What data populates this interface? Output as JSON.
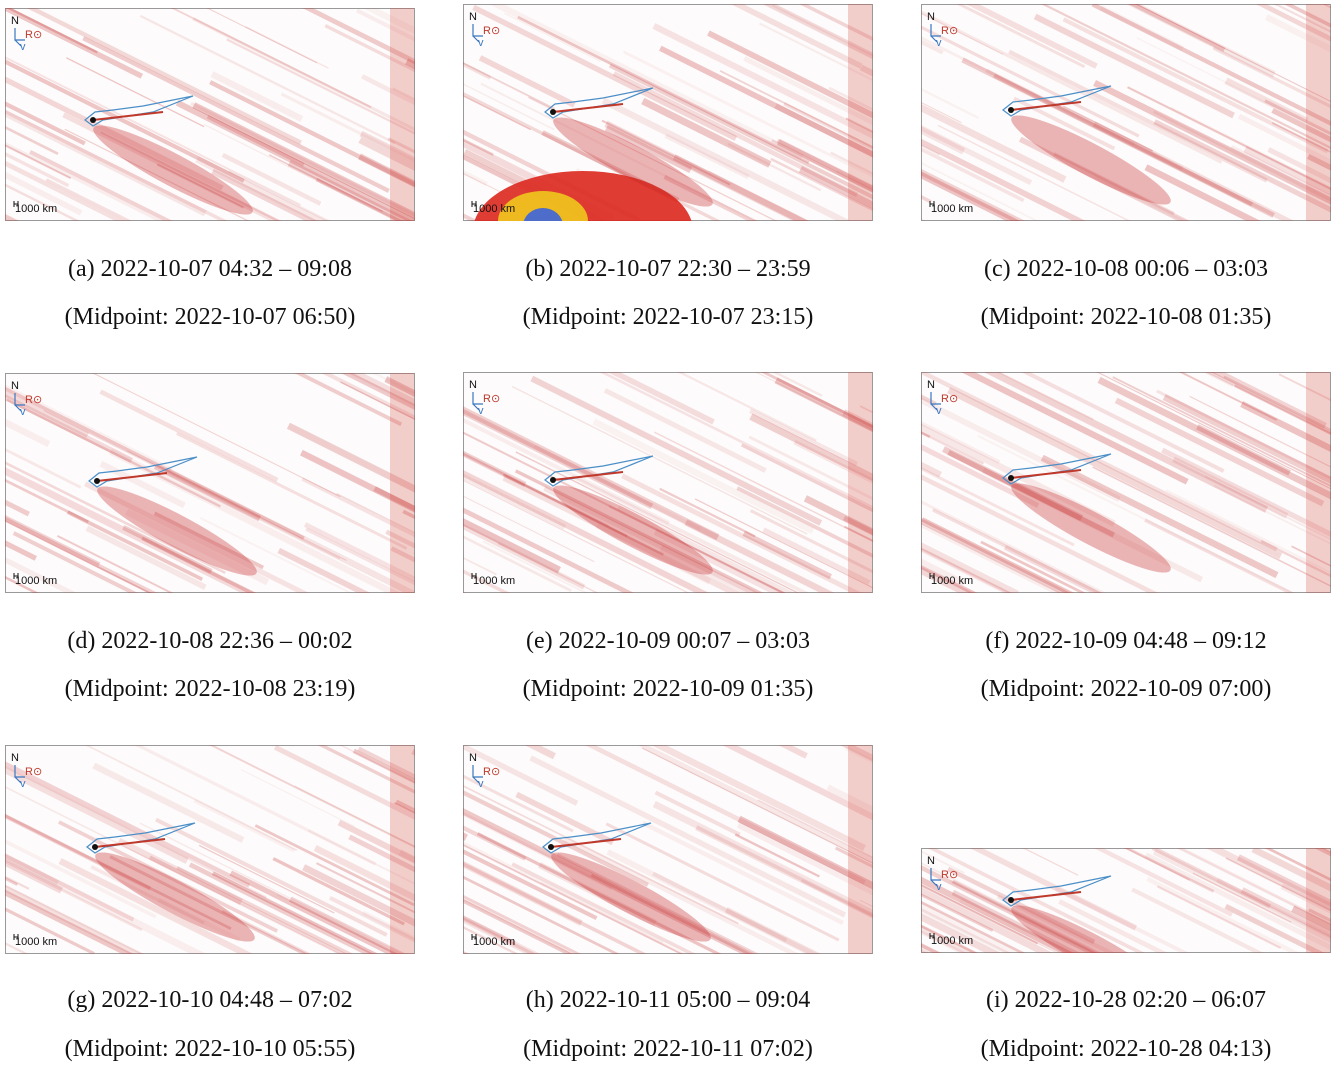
{
  "panels": [
    {
      "caption": "(a) 2022-10-07 04:32 – 09:08",
      "midpoint": "(Midpoint: 2022-10-07 06:50)",
      "north": "N",
      "radial": "R⊙",
      "velocity": "v",
      "scale": "1000 km"
    },
    {
      "caption": "(b) 2022-10-07 22:30 – 23:59",
      "midpoint": "(Midpoint: 2022-10-07 23:15)",
      "north": "N",
      "radial": "R⊙",
      "velocity": "v",
      "scale": "1000 km"
    },
    {
      "caption": "(c) 2022-10-08 00:06 – 03:03",
      "midpoint": "(Midpoint: 2022-10-08 01:35)",
      "north": "N",
      "radial": "R⊙",
      "velocity": "v",
      "scale": "1000 km"
    },
    {
      "caption": "(d) 2022-10-08 22:36 – 00:02",
      "midpoint": "(Midpoint: 2022-10-08 23:19)",
      "north": "N",
      "radial": "R⊙",
      "velocity": "v",
      "scale": "1000 km"
    },
    {
      "caption": "(e) 2022-10-09 00:07 – 03:03",
      "midpoint": "(Midpoint: 2022-10-09 01:35)",
      "north": "N",
      "radial": "R⊙",
      "velocity": "v",
      "scale": "1000 km"
    },
    {
      "caption": "(f) 2022-10-09 04:48 – 09:12",
      "midpoint": "(Midpoint: 2022-10-09 07:00)",
      "north": "N",
      "radial": "R⊙",
      "velocity": "v",
      "scale": "1000 km"
    },
    {
      "caption": "(g) 2022-10-10 04:48 – 07:02",
      "midpoint": "(Midpoint: 2022-10-10 05:55)",
      "north": "N",
      "radial": "R⊙",
      "velocity": "v",
      "scale": "1000 km"
    },
    {
      "caption": "(h) 2022-10-11 05:00 – 09:04",
      "midpoint": "(Midpoint: 2022-10-11 07:02)",
      "north": "N",
      "radial": "R⊙",
      "velocity": "v",
      "scale": "1000 km"
    },
    {
      "caption": "(i) 2022-10-28 02:20 – 06:07",
      "midpoint": "(Midpoint: 2022-10-28 04:13)",
      "north": "N",
      "radial": "R⊙",
      "velocity": "v",
      "scale": "1000 km"
    }
  ]
}
